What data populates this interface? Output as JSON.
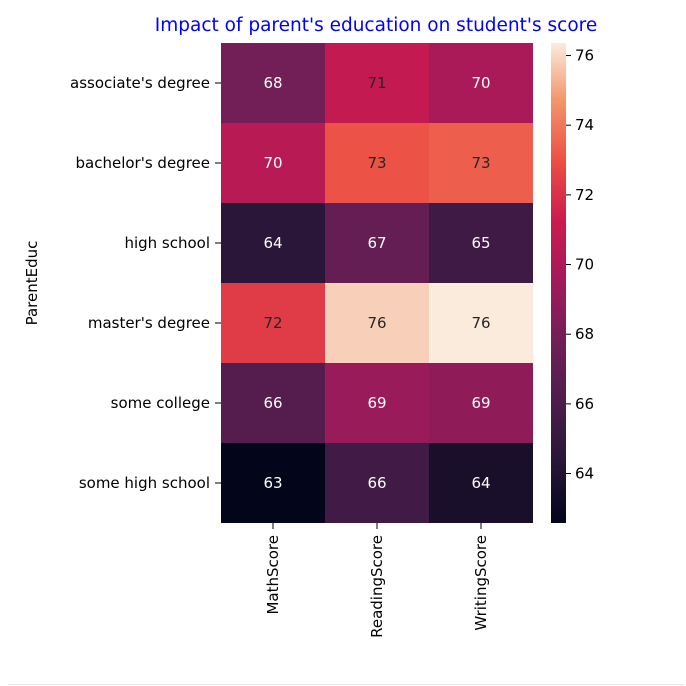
{
  "chart_data": {
    "type": "heatmap",
    "title": "Impact of parent's education on student's score",
    "title_color": "#0000ff",
    "ylabel": "ParentEduc",
    "xlabel": "",
    "x_categories": [
      "MathScore",
      "ReadingScore",
      "WritingScore"
    ],
    "y_categories": [
      "associate's degree",
      "bachelor's degree",
      "high school",
      "master's degree",
      "some college",
      "some high school"
    ],
    "values": [
      [
        67.88,
        70.93,
        69.9
      ],
      [
        70.47,
        73.06,
        73.33
      ],
      [
        64.44,
        67.21,
        65.42
      ],
      [
        72.34,
        75.83,
        76.36
      ],
      [
        66.39,
        69.18,
        68.84
      ],
      [
        62.58,
        65.51,
        63.63
      ]
    ],
    "annotations": [
      [
        "68",
        "71",
        "70"
      ],
      [
        "70",
        "73",
        "73"
      ],
      [
        "64",
        "67",
        "65"
      ],
      [
        "72",
        "76",
        "76"
      ],
      [
        "66",
        "69",
        "69"
      ],
      [
        "63",
        "66",
        "64"
      ]
    ],
    "colormap": "rocket",
    "colorbar": {
      "range": [
        62.58,
        76.36
      ],
      "ticks": [
        64,
        66,
        68,
        70,
        72,
        74,
        76
      ],
      "tick_labels": [
        "64",
        "66",
        "68",
        "70",
        "72",
        "74",
        "76"
      ]
    },
    "grid": false
  }
}
